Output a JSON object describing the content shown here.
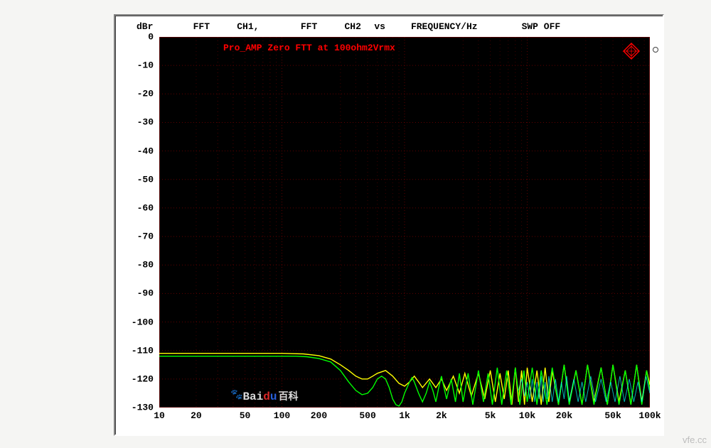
{
  "header": {
    "unit": "dBr",
    "seg1": "FFT",
    "ch1": "CH1,",
    "seg2": "FFT",
    "ch2": "CH2",
    "vs": "vs",
    "xaxis": "FREQUENCY/Hz",
    "swp": "SWP OFF"
  },
  "chart": {
    "title": "Pro_AMP Zero FTT at 100ohm2Vrmx",
    "type": "line",
    "background_color": "#000000",
    "grid_color_major": "#600000",
    "grid_color_minor": "#400000",
    "text_color": "#000000",
    "title_color": "#ff0000",
    "title_fontsize": 13,
    "label_fontsize": 13,
    "scale_x": "log",
    "xlim": [
      10,
      100000
    ],
    "ylim": [
      -130,
      0
    ],
    "ytick_step": 10,
    "y_ticks": [
      "0",
      "-10",
      "-20",
      "-30",
      "-40",
      "-50",
      "-60",
      "-70",
      "-80",
      "-90",
      "-100",
      "-110",
      "-120",
      "-130"
    ],
    "x_ticks": [
      {
        "v": 10,
        "label": "10"
      },
      {
        "v": 20,
        "label": "20"
      },
      {
        "v": 50,
        "label": "50"
      },
      {
        "v": 100,
        "label": "100"
      },
      {
        "v": 200,
        "label": "200"
      },
      {
        "v": 500,
        "label": "500"
      },
      {
        "v": 1000,
        "label": "1k"
      },
      {
        "v": 2000,
        "label": "2k"
      },
      {
        "v": 5000,
        "label": "5k"
      },
      {
        "v": 10000,
        "label": "10k"
      },
      {
        "v": 20000,
        "label": "20k"
      },
      {
        "v": 50000,
        "label": "50k"
      },
      {
        "v": 100000,
        "label": "100k"
      }
    ],
    "minor_x_log": [
      3,
      4,
      5,
      6,
      7,
      8,
      9
    ],
    "series": [
      {
        "name": "CH1",
        "color": "#ffff00",
        "line_width": 1.4,
        "points": [
          [
            10,
            -111
          ],
          [
            50,
            -111
          ],
          [
            100,
            -111
          ],
          [
            150,
            -111.2
          ],
          [
            200,
            -111.8
          ],
          [
            250,
            -113
          ],
          [
            300,
            -115
          ],
          [
            350,
            -117
          ],
          [
            400,
            -119
          ],
          [
            450,
            -120
          ],
          [
            500,
            -120
          ],
          [
            550,
            -119
          ],
          [
            600,
            -118
          ],
          [
            700,
            -117
          ],
          [
            800,
            -119
          ],
          [
            900,
            -121.5
          ],
          [
            1000,
            -122.5
          ],
          [
            1100,
            -121
          ],
          [
            1200,
            -119
          ],
          [
            1300,
            -121
          ],
          [
            1400,
            -123
          ],
          [
            1600,
            -120
          ],
          [
            1800,
            -123
          ],
          [
            2000,
            -120
          ],
          [
            2200,
            -124
          ],
          [
            2500,
            -119
          ],
          [
            2800,
            -125
          ],
          [
            3100,
            -118
          ],
          [
            3500,
            -126
          ],
          [
            4000,
            -118
          ],
          [
            4500,
            -127
          ],
          [
            5000,
            -117
          ],
          [
            5500,
            -128
          ],
          [
            6000,
            -118
          ],
          [
            6500,
            -127
          ],
          [
            7000,
            -117
          ],
          [
            7500,
            -129
          ],
          [
            8000,
            -116
          ],
          [
            8500,
            -128
          ],
          [
            9000,
            -117
          ],
          [
            9500,
            -129
          ],
          [
            10000,
            -116
          ],
          [
            11000,
            -128
          ],
          [
            12000,
            -117
          ],
          [
            13000,
            -129
          ],
          [
            14000,
            -116
          ],
          [
            15000,
            -128
          ],
          [
            16000,
            -117
          ],
          [
            18000,
            -129
          ],
          [
            20000,
            -115
          ],
          [
            22000,
            -128
          ],
          [
            25000,
            -117
          ],
          [
            28000,
            -129
          ],
          [
            31000,
            -115
          ],
          [
            35000,
            -128
          ],
          [
            40000,
            -116
          ],
          [
            45000,
            -129
          ],
          [
            50000,
            -115
          ],
          [
            56000,
            -128
          ],
          [
            63000,
            -117
          ],
          [
            70000,
            -129
          ],
          [
            78000,
            -115
          ],
          [
            86000,
            -128
          ],
          [
            94000,
            -117
          ],
          [
            100000,
            -122
          ]
        ]
      },
      {
        "name": "CH2",
        "color": "#00ff00",
        "line_width": 1.4,
        "points": [
          [
            10,
            -112
          ],
          [
            50,
            -112
          ],
          [
            100,
            -112
          ],
          [
            130,
            -112
          ],
          [
            160,
            -112.2
          ],
          [
            200,
            -112.8
          ],
          [
            250,
            -114
          ],
          [
            300,
            -117
          ],
          [
            350,
            -121
          ],
          [
            400,
            -124
          ],
          [
            450,
            -125.5
          ],
          [
            500,
            -125
          ],
          [
            550,
            -123
          ],
          [
            600,
            -120
          ],
          [
            650,
            -119
          ],
          [
            700,
            -120
          ],
          [
            750,
            -123
          ],
          [
            800,
            -127
          ],
          [
            850,
            -129
          ],
          [
            900,
            -129.5
          ],
          [
            950,
            -128
          ],
          [
            1000,
            -125
          ],
          [
            1100,
            -121
          ],
          [
            1150,
            -119.5
          ],
          [
            1200,
            -121
          ],
          [
            1300,
            -125
          ],
          [
            1400,
            -128
          ],
          [
            1500,
            -125
          ],
          [
            1600,
            -121
          ],
          [
            1700,
            -124
          ],
          [
            1800,
            -128
          ],
          [
            1900,
            -123
          ],
          [
            2000,
            -119
          ],
          [
            2200,
            -127
          ],
          [
            2400,
            -120
          ],
          [
            2600,
            -128
          ],
          [
            2800,
            -118
          ],
          [
            3000,
            -128
          ],
          [
            3300,
            -118
          ],
          [
            3600,
            -129
          ],
          [
            4000,
            -117
          ],
          [
            4400,
            -128
          ],
          [
            4800,
            -118
          ],
          [
            5200,
            -129
          ],
          [
            5700,
            -116
          ],
          [
            6200,
            -129
          ],
          [
            6800,
            -117
          ],
          [
            7400,
            -129
          ],
          [
            8000,
            -116
          ],
          [
            8700,
            -129
          ],
          [
            9400,
            -117
          ],
          [
            10000,
            -128
          ],
          [
            11000,
            -116
          ],
          [
            12000,
            -129
          ],
          [
            13000,
            -117
          ],
          [
            14500,
            -129
          ],
          [
            16000,
            -116
          ],
          [
            18000,
            -129
          ],
          [
            20000,
            -115
          ],
          [
            22000,
            -129
          ],
          [
            25000,
            -117
          ],
          [
            28000,
            -129
          ],
          [
            31000,
            -115
          ],
          [
            35000,
            -129
          ],
          [
            40000,
            -116
          ],
          [
            45000,
            -129
          ],
          [
            50000,
            -115
          ],
          [
            56000,
            -129
          ],
          [
            63000,
            -117
          ],
          [
            70000,
            -129
          ],
          [
            78000,
            -115
          ],
          [
            86000,
            -129
          ],
          [
            94000,
            -117
          ],
          [
            100000,
            -124
          ]
        ]
      },
      {
        "name": "CH2-noise",
        "color": "#00ffff",
        "line_width": 1.0,
        "opacity": 0.7,
        "points": [
          [
            8500,
            -124
          ],
          [
            9000,
            -120
          ],
          [
            9500,
            -126
          ],
          [
            10000,
            -121
          ],
          [
            10500,
            -127
          ],
          [
            11000,
            -120
          ],
          [
            11500,
            -128
          ],
          [
            12000,
            -121
          ],
          [
            12500,
            -127
          ],
          [
            13000,
            -119
          ],
          [
            13500,
            -128
          ],
          [
            14000,
            -121
          ],
          [
            14500,
            -127
          ],
          [
            15000,
            -119
          ],
          [
            16000,
            -128
          ],
          [
            17000,
            -120
          ],
          [
            18000,
            -128
          ],
          [
            19000,
            -121
          ],
          [
            20000,
            -127
          ],
          [
            21000,
            -119
          ],
          [
            22000,
            -128
          ],
          [
            24000,
            -120
          ],
          [
            26000,
            -128
          ],
          [
            28000,
            -121
          ],
          [
            30000,
            -128
          ],
          [
            33000,
            -119
          ],
          [
            36000,
            -128
          ],
          [
            40000,
            -120
          ],
          [
            44000,
            -128
          ],
          [
            48000,
            -121
          ],
          [
            52000,
            -128
          ],
          [
            57000,
            -119
          ],
          [
            62000,
            -128
          ],
          [
            68000,
            -120
          ],
          [
            74000,
            -128
          ],
          [
            80000,
            -121
          ],
          [
            86000,
            -128
          ],
          [
            93000,
            -119
          ],
          [
            100000,
            -125
          ]
        ]
      }
    ],
    "marker": {
      "symbol": "diamond",
      "color": "#ff0000"
    }
  },
  "watermarks": {
    "baidu": "Bai",
    "baidu2": "百科",
    "corner": "vfe.cc"
  }
}
